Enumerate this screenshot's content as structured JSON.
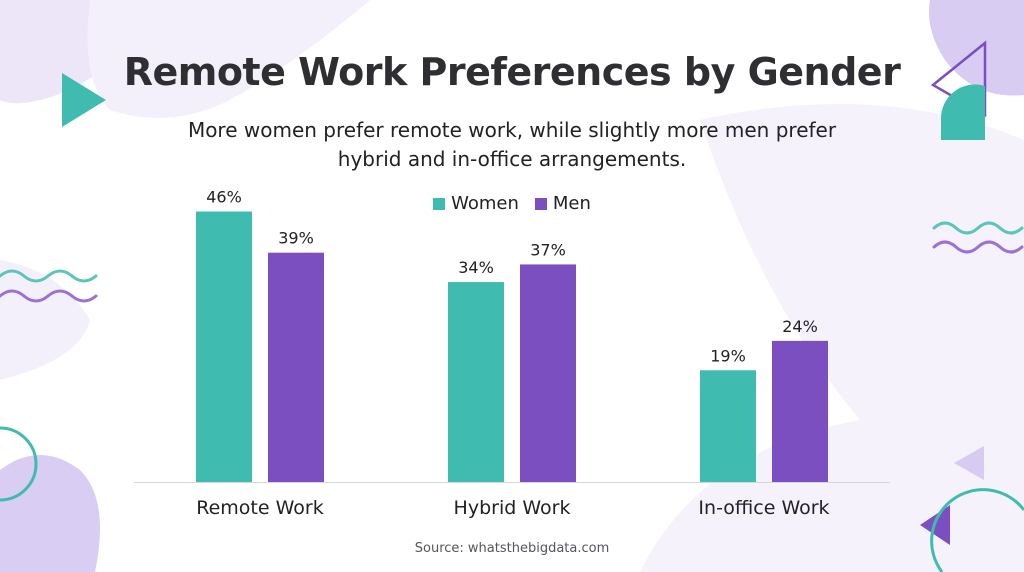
{
  "title": "Remote Work Preferences by Gender",
  "subtitle_line1": "More women prefer remote work, while slightly more men prefer",
  "subtitle_line2": "hybrid and in-office arrangements.",
  "source": "Source: whatsthebigdata.com",
  "colors": {
    "women": "#3fbcaf",
    "men": "#7b4fc0",
    "accent_light": "#e9e2f7",
    "accent_mid": "#cfc1ee"
  },
  "chart_data": {
    "type": "bar",
    "categories": [
      "Remote Work",
      "Hybrid Work",
      "In-office Work"
    ],
    "series": [
      {
        "name": "Women",
        "values": [
          46,
          34,
          19
        ],
        "labels": [
          "46%",
          "34%",
          "19%"
        ]
      },
      {
        "name": "Men",
        "values": [
          39,
          37,
          24
        ],
        "labels": [
          "39%",
          "37%",
          "24%"
        ]
      }
    ],
    "title": "Remote Work Preferences by Gender",
    "xlabel": "",
    "ylabel": "",
    "ylim": [
      0,
      50
    ],
    "grid": false,
    "legend": "top-center"
  }
}
